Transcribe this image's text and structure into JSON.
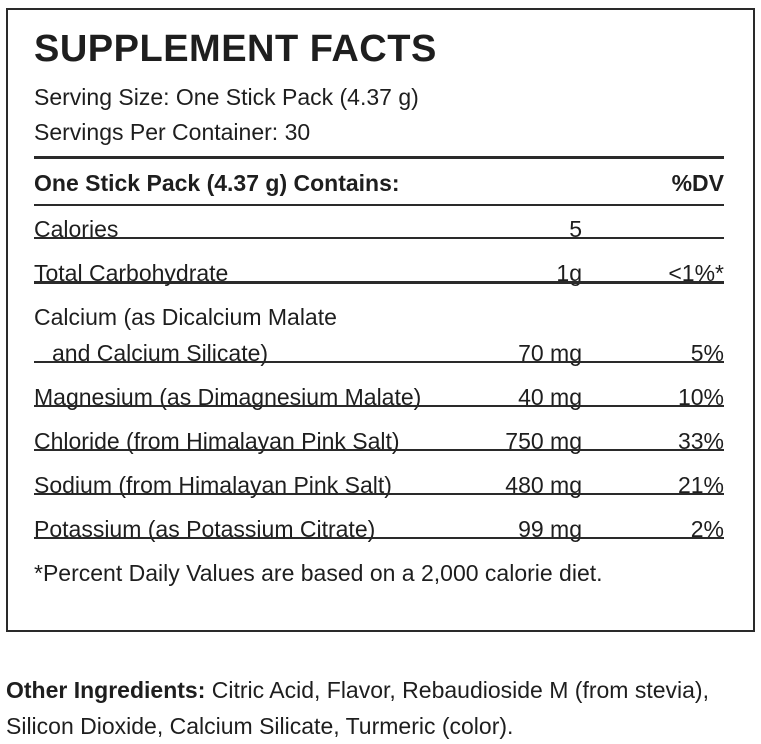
{
  "header": {
    "title": "SUPPLEMENT FACTS",
    "serving_size": "Serving Size: One Stick Pack (4.37 g)",
    "servings_per_container": "Servings Per Container: 30"
  },
  "table": {
    "header": {
      "label": "One Stick Pack (4.37 g) Contains:",
      "dv": "%DV"
    },
    "rows": [
      {
        "name": [
          "Calories"
        ],
        "amount": "5"
      },
      {
        "name": [
          "Total Carbohydrate"
        ],
        "amount": "1g",
        "dv": "<1%*"
      },
      {
        "name": [
          "Calcium (as Dicalcium Malate",
          "and Calcium Silicate)"
        ],
        "amount": "70 mg",
        "dv": "5%"
      },
      {
        "name": [
          "Magnesium (as Dimagnesium Malate)"
        ],
        "amount": "40 mg",
        "dv": "10%"
      },
      {
        "name": [
          "Chloride (from Himalayan Pink Salt)"
        ],
        "amount": "750 mg",
        "dv": "33%"
      },
      {
        "name": [
          "Sodium (from Himalayan Pink Salt)"
        ],
        "amount": "480 mg",
        "dv": "21%"
      },
      {
        "name": [
          "Potassium (as Potassium Citrate)"
        ],
        "amount": "99 mg",
        "dv": "2%"
      }
    ]
  },
  "footnote": "*Percent Daily Values are based on a 2,000 calorie diet.",
  "other_ingredients": {
    "label": "Other Ingredients:",
    "text": "Citric Acid, Flavor, Rebaudioside M (from stevia), Silicon Dioxide, Calcium Silicate, Turmeric (color)."
  }
}
